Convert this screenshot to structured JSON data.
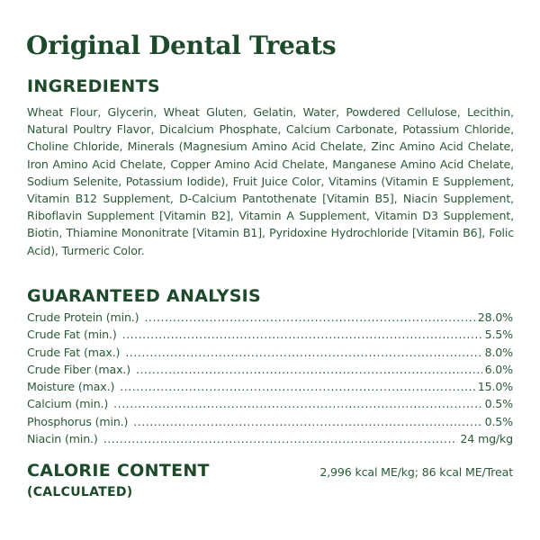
{
  "title": "Original Dental Treats",
  "ingredients": {
    "heading": "INGREDIENTS",
    "text": "Wheat Flour, Glycerin, Wheat Gluten, Gelatin, Water, Powdered Cellulose, Lecithin, Natural Poultry Flavor, Dicalcium Phosphate, Calcium Carbonate, Potassium Chloride, Choline Chloride, Minerals (Magnesium Amino Acid Chelate, Zinc Amino Acid Chelate, Iron Amino Acid Chelate, Copper Amino Acid Chelate, Manganese Amino Acid Chelate, Sodium Selenite, Potassium Iodide), Fruit Juice Color, Vitamins (Vitamin E Supplement, Vitamin B12 Supplement, D-Calcium Pantothenate [Vitamin B5], Niacin Supplement, Riboflavin Supplement [Vitamin B2], Vitamin A Supplement, Vitamin D3 Supplement, Biotin, Thiamine Mononitrate [Vitamin B1], Pyridoxine Hydrochloride [Vitamin B6], Folic Acid), Turmeric Color."
  },
  "analysis": {
    "heading": "GUARANTEED ANALYSIS",
    "rows": [
      {
        "label": "Crude Protein (min.)",
        "value": "28.0%"
      },
      {
        "label": "Crude Fat (min.)",
        "value": "5.5%"
      },
      {
        "label": "Crude Fat (max.)",
        "value": "8.0%"
      },
      {
        "label": "Crude Fiber (max.)",
        "value": "6.0%"
      },
      {
        "label": "Moisture (max.)",
        "value": "15.0%"
      },
      {
        "label": "Calcium (min.)",
        "value": "0.5%"
      },
      {
        "label": "Phosphorus (min.)",
        "value": "0.5%"
      },
      {
        "label": "Niacin (min.)",
        "value": "24 mg/kg"
      }
    ]
  },
  "calorie": {
    "heading": "CALORIE CONTENT",
    "subheading": "(CALCULATED)",
    "value": "2,996 kcal ME/kg; 86 kcal ME/Treat"
  },
  "colors": {
    "heading": "#1d4a2a",
    "text": "#2b5a37",
    "background": "#ffffff"
  }
}
